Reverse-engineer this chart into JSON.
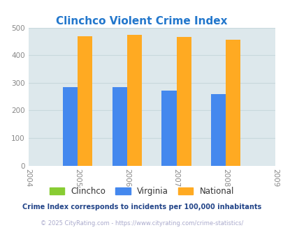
{
  "title": "Clinchco Violent Crime Index",
  "title_color": "#2277cc",
  "years": [
    2005,
    2006,
    2007,
    2008
  ],
  "xmin": 2004,
  "xmax": 2009,
  "ymin": 0,
  "ymax": 500,
  "yticks": [
    0,
    100,
    200,
    300,
    400,
    500
  ],
  "clinchco": [
    0,
    0,
    0,
    0
  ],
  "virginia": [
    284,
    285,
    271,
    260
  ],
  "national": [
    469,
    474,
    467,
    455
  ],
  "clinchco_color": "#88cc33",
  "virginia_color": "#4488ee",
  "national_color": "#ffaa22",
  "plot_bg_color": "#dde8ec",
  "bar_width": 0.3,
  "legend_labels": [
    "Clinchco",
    "Virginia",
    "National"
  ],
  "footer1": "Crime Index corresponds to incidents per 100,000 inhabitants",
  "footer2": "© 2025 CityRating.com - https://www.cityrating.com/crime-statistics/",
  "footer1_color": "#224488",
  "footer2_color": "#aaaacc",
  "grid_color": "#c8d8dc",
  "tick_label_color": "#888888",
  "title_fontsize": 11
}
